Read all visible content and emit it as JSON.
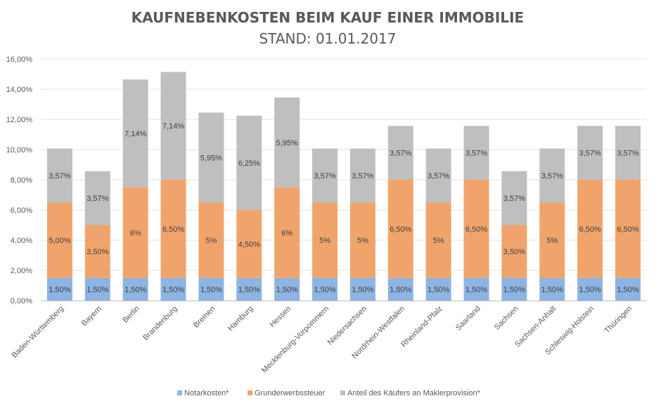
{
  "chart_data": {
    "type": "bar",
    "stacked": true,
    "title": "KAUFNEBENKOSTEN BEIM KAUF EINER IMMOBILIE",
    "subtitle": "STAND: 01.01.2017",
    "xlabel": "",
    "ylabel": "",
    "ylim": [
      0,
      16
    ],
    "yticks": [
      0,
      2,
      4,
      6,
      8,
      10,
      12,
      14,
      16
    ],
    "ytick_labels": [
      "0,00%",
      "2,00%",
      "4,00%",
      "6,00%",
      "8,00%",
      "10,00%",
      "12,00%",
      "14,00%",
      "16,00%"
    ],
    "grid": true,
    "legend_position": "bottom",
    "categories": [
      "Baden-Württemberg",
      "Bayern",
      "Berlin",
      "Brandenburg",
      "Bremen",
      "Hamburg",
      "Hessen",
      "Mecklenburg-Vorpommern",
      "Niedersachsen",
      "Nordrhein-Westfalen",
      "Rheinland-Pfalz",
      "Saarland",
      "Sachsen",
      "Sachsen-Anhalt",
      "Schleswig-Holstein",
      "Thüringen"
    ],
    "series": [
      {
        "name": "Notarkosten*",
        "color": "#8DB4E2",
        "values": [
          1.5,
          1.5,
          1.5,
          1.5,
          1.5,
          1.5,
          1.5,
          1.5,
          1.5,
          1.5,
          1.5,
          1.5,
          1.5,
          1.5,
          1.5,
          1.5
        ],
        "labels": [
          "1,50%",
          "1,50%",
          "1,50%",
          "1,50%",
          "1,50%",
          "1,50%",
          "1,50%",
          "1,50%",
          "1,50%",
          "1,50%",
          "1,50%",
          "1,50%",
          "1,50%",
          "1,50%",
          "1,50%",
          "1,50%"
        ]
      },
      {
        "name": "Grunderwerbssteuer",
        "color": "#F0A46C",
        "values": [
          5.0,
          3.5,
          6.0,
          6.5,
          5.0,
          4.5,
          6.0,
          5.0,
          5.0,
          6.5,
          5.0,
          6.5,
          3.5,
          5.0,
          6.5,
          6.5
        ],
        "labels": [
          "5,00%",
          "3,50%",
          "6%",
          "6,50%",
          "5%",
          "4,50%",
          "6%",
          "5%",
          "5%",
          "6,50%",
          "5%",
          "6,50%",
          "3,50%",
          "5%",
          "6,50%",
          "6,50%"
        ]
      },
      {
        "name": "Anteil des Käufers an Maklerprovision*",
        "color": "#BFBFBF",
        "values": [
          3.57,
          3.57,
          7.14,
          7.14,
          5.95,
          6.25,
          5.95,
          3.57,
          3.57,
          3.57,
          3.57,
          3.57,
          3.57,
          3.57,
          3.57,
          3.57
        ],
        "labels": [
          "3,57%",
          "3,57%",
          "7,14%",
          "7,14%",
          "5,95%",
          "6,25%",
          "5,95%",
          "3,57%",
          "3,57%",
          "3,57%",
          "3,57%",
          "3,57%",
          "3,57%",
          "3,57%",
          "3,57%",
          "3,57%"
        ]
      }
    ]
  }
}
